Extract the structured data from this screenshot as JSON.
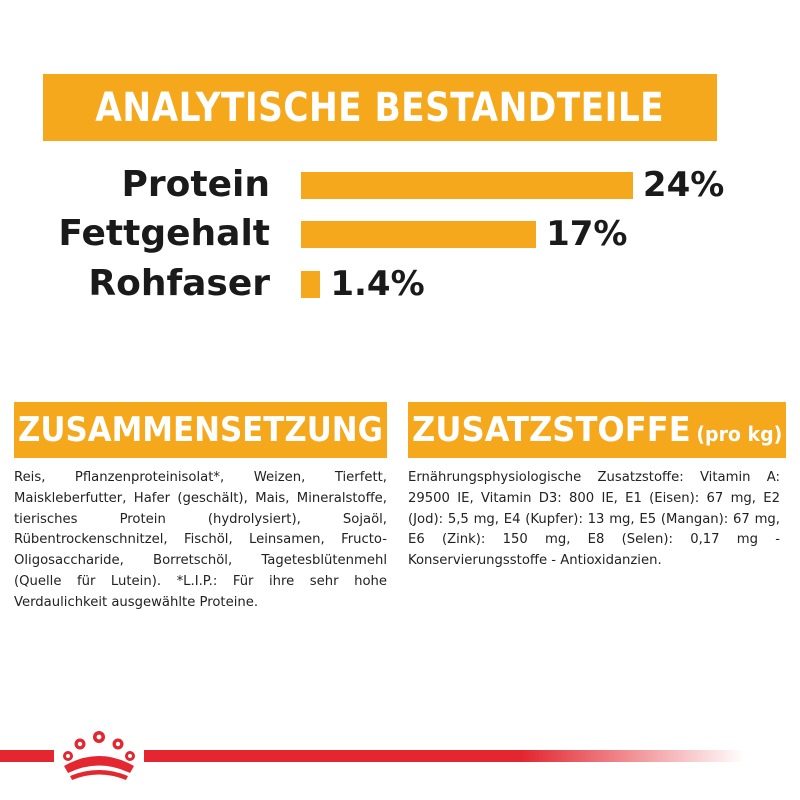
{
  "header": {
    "title": "ANALYTISCHE BESTANDTEILE"
  },
  "analysis": [
    {
      "label": "Protein",
      "value": "24%",
      "fraction": 0.24
    },
    {
      "label": "Fettgehalt",
      "value": "17%",
      "fraction": 0.17
    },
    {
      "label": "Rohfaser",
      "value": "1.4%",
      "fraction": 0.014
    }
  ],
  "composition": {
    "title": "ZUSAMMENSETZUNG",
    "text": "Reis, Pflanzenproteinisolat*, Weizen, Tierfett, Maiskleberfutter, Hafer (geschält), Mais, Mineralstoffe, tierisches Protein (hydrolysiert), Sojaöl, Rübentrockenschnitzel, Fischöl, Leinsamen, Fructo-Oligosaccharide, Borretschöl, Tagetesblütenmehl (Quelle für Lutein). *L.I.P.: Für ihre sehr hohe Verdaulichkeit ausgewählte Proteine."
  },
  "additives": {
    "title": "ZUSATZSTOFFE",
    "title_suffix": "(pro kg)",
    "text": "Ernährungsphysiologische Zusatzstoffe: Vitamin A: 29500 IE, Vitamin D3: 800 IE, E1 (Eisen): 67 mg, E2 (Jod): 5,5 mg, E4 (Kupfer): 13 mg, E5 (Mangan): 67 mg, E6 (Zink): 150 mg, E8 (Selen): 0,17 mg - Konservierungsstoffe - Antioxidanzien."
  },
  "footer": {
    "logo_icon": "crown-icon"
  },
  "colors": {
    "accent": "#f6a81c",
    "brand_red": "#e3262f",
    "text": "#1a1a1a"
  }
}
